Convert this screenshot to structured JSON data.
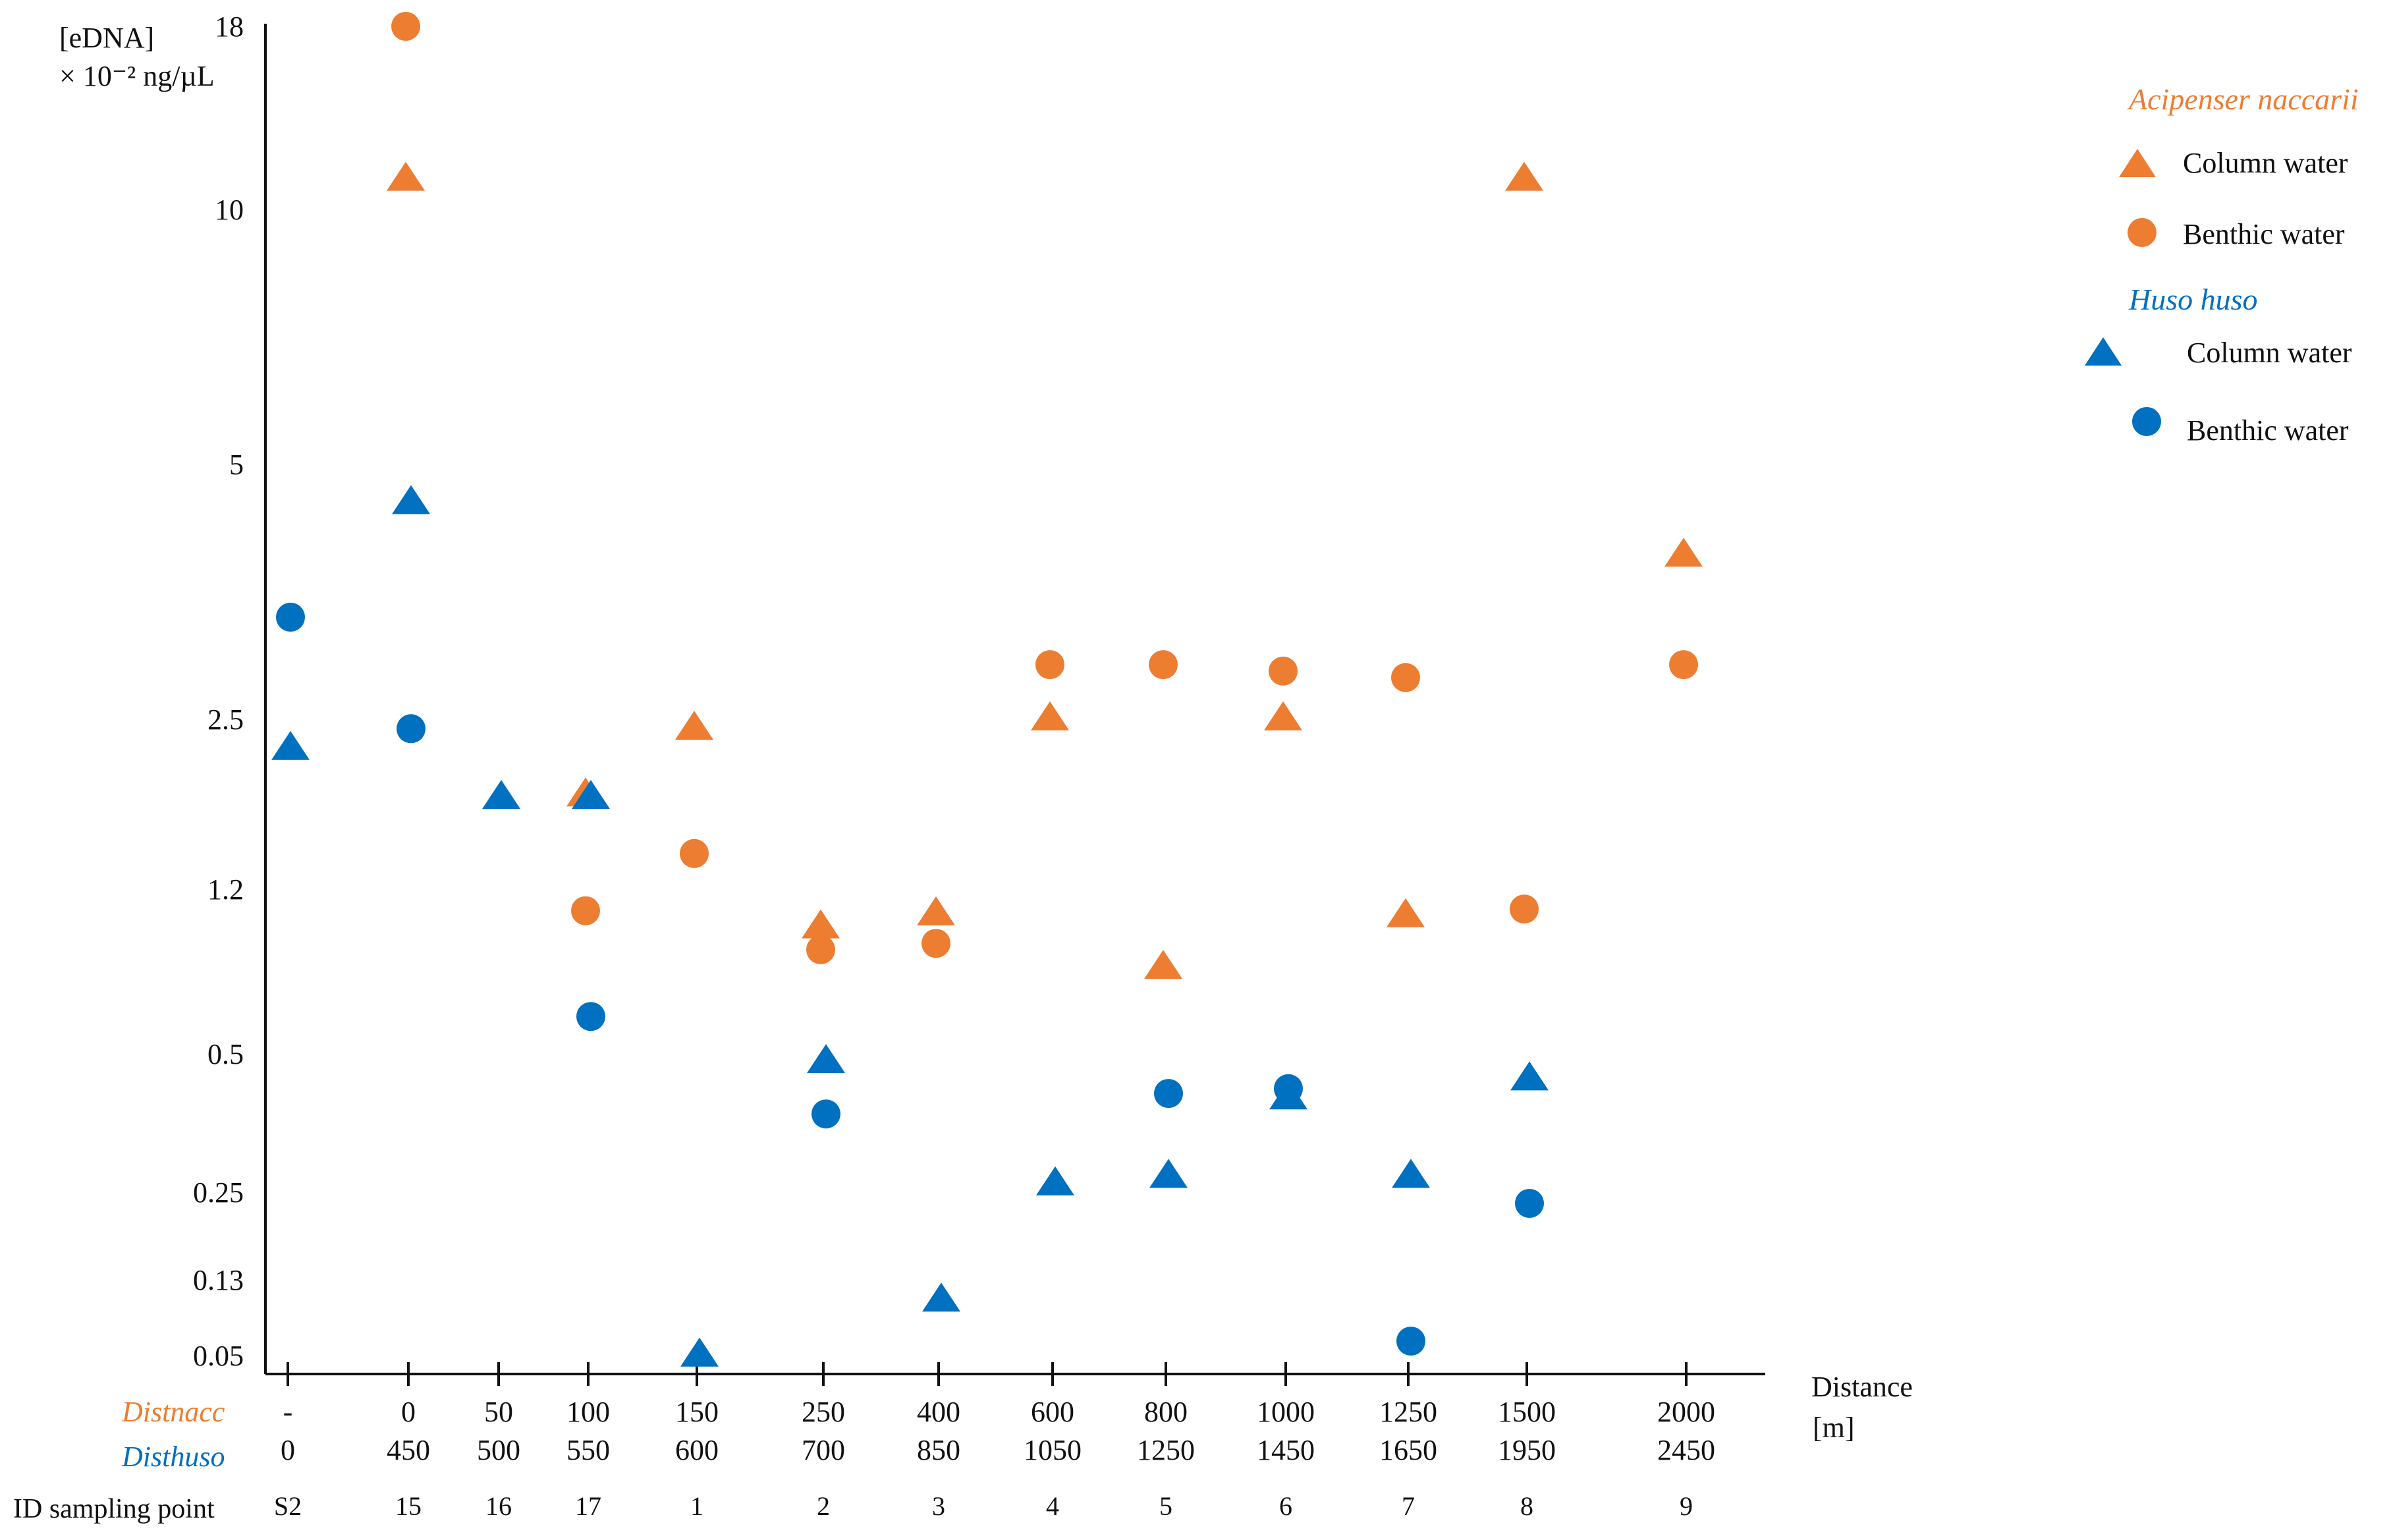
{
  "chart_data": {
    "type": "scatter",
    "yscale": "log",
    "ylabel_line1": "[eDNA]",
    "ylabel_line2": "× 10⁻² ng/µL",
    "y_ticks": [
      {
        "value": 18,
        "label": "18"
      },
      {
        "value": 10,
        "label": "10"
      },
      {
        "value": 5,
        "label": "5"
      },
      {
        "value": 2.5,
        "label": "2.5"
      },
      {
        "value": 1.2,
        "label": "1.2"
      },
      {
        "value": 0.5,
        "label": "0.5"
      },
      {
        "value": 0.25,
        "label": "0.25"
      },
      {
        "value": 0.13,
        "label": "0.13"
      },
      {
        "value": 0.05,
        "label": "0.05"
      }
    ],
    "x_axis": {
      "title_line1": "Distance",
      "title_line2": "[m]",
      "row_labels": {
        "distnacc": "Distnacc",
        "disthuso": "Disthuso",
        "id": "ID sampling point"
      },
      "points": [
        {
          "distnacc": "-",
          "disthuso": "0",
          "id": "S2"
        },
        {
          "distnacc": "0",
          "disthuso": "450",
          "id": "15"
        },
        {
          "distnacc": "50",
          "disthuso": "500",
          "id": "16"
        },
        {
          "distnacc": "100",
          "disthuso": "550",
          "id": "17"
        },
        {
          "distnacc": "150",
          "disthuso": "600",
          "id": "1"
        },
        {
          "distnacc": "250",
          "disthuso": "700",
          "id": "2"
        },
        {
          "distnacc": "400",
          "disthuso": "850",
          "id": "3"
        },
        {
          "distnacc": "600",
          "disthuso": "1050",
          "id": "4"
        },
        {
          "distnacc": "800",
          "disthuso": "1250",
          "id": "5"
        },
        {
          "distnacc": "1000",
          "disthuso": "1450",
          "id": "6"
        },
        {
          "distnacc": "1250",
          "disthuso": "1650",
          "id": "7"
        },
        {
          "distnacc": "1500",
          "disthuso": "1950",
          "id": "8"
        },
        {
          "distnacc": "2000",
          "disthuso": "2450",
          "id": "9"
        }
      ]
    },
    "legend": {
      "groups": [
        {
          "species": "Acipenser naccarii",
          "color": "#ED7D31",
          "items": [
            {
              "marker": "triangle",
              "label": "Column water"
            },
            {
              "marker": "circle",
              "label": "Benthic water"
            }
          ]
        },
        {
          "species": "Huso huso",
          "color": "#0070C0",
          "items": [
            {
              "marker": "triangle",
              "label": "Column water"
            },
            {
              "marker": "circle",
              "label": "Benthic water"
            }
          ]
        }
      ]
    },
    "series": [
      {
        "name": "Acipenser naccarii – Column water",
        "species": "naccarii",
        "marker": "triangle",
        "color": "#ED7D31",
        "points": [
          {
            "id": "15",
            "y": 11.0
          },
          {
            "id": "17",
            "y": 1.8
          },
          {
            "id": "1",
            "y": 2.4
          },
          {
            "id": "2",
            "y": 0.98
          },
          {
            "id": "3",
            "y": 1.05
          },
          {
            "id": "4",
            "y": 2.5
          },
          {
            "id": "5",
            "y": 0.79
          },
          {
            "id": "6",
            "y": 2.5
          },
          {
            "id": "7",
            "y": 1.04
          },
          {
            "id": "8",
            "y": 11.0
          },
          {
            "id": "9",
            "y": 3.9
          }
        ]
      },
      {
        "name": "Acipenser naccarii – Benthic water",
        "species": "naccarii",
        "marker": "circle",
        "color": "#ED7D31",
        "points": [
          {
            "id": "15",
            "y": 18.0
          },
          {
            "id": "17",
            "y": 1.07
          },
          {
            "id": "1",
            "y": 1.4
          },
          {
            "id": "2",
            "y": 0.87
          },
          {
            "id": "3",
            "y": 0.9
          },
          {
            "id": "4",
            "y": 2.9
          },
          {
            "id": "5",
            "y": 2.9
          },
          {
            "id": "6",
            "y": 2.85
          },
          {
            "id": "7",
            "y": 2.8
          },
          {
            "id": "8",
            "y": 1.08
          },
          {
            "id": "9",
            "y": 2.9
          }
        ]
      },
      {
        "name": "Huso huso – Column water",
        "species": "huso",
        "marker": "triangle",
        "color": "#0070C0",
        "points": [
          {
            "id": "S2",
            "y": 2.2
          },
          {
            "id": "15",
            "y": 4.5
          },
          {
            "id": "16",
            "y": 1.78
          },
          {
            "id": "17",
            "y": 1.78
          },
          {
            "id": "1",
            "y": 0.05
          },
          {
            "id": "2",
            "y": 0.48
          },
          {
            "id": "3",
            "y": 0.1
          },
          {
            "id": "4",
            "y": 0.26
          },
          {
            "id": "5",
            "y": 0.27
          },
          {
            "id": "6",
            "y": 0.4
          },
          {
            "id": "7",
            "y": 0.27
          },
          {
            "id": "8",
            "y": 0.44
          }
        ]
      },
      {
        "name": "Huso huso – Benthic water",
        "species": "huso",
        "marker": "circle",
        "color": "#0070C0",
        "points": [
          {
            "id": "S2",
            "y": 3.3
          },
          {
            "id": "15",
            "y": 2.4
          },
          {
            "id": "17",
            "y": 0.61
          },
          {
            "id": "2",
            "y": 0.37
          },
          {
            "id": "5",
            "y": 0.41
          },
          {
            "id": "6",
            "y": 0.42
          },
          {
            "id": "7",
            "y": 0.06
          },
          {
            "id": "8",
            "y": 0.23
          }
        ]
      }
    ]
  }
}
